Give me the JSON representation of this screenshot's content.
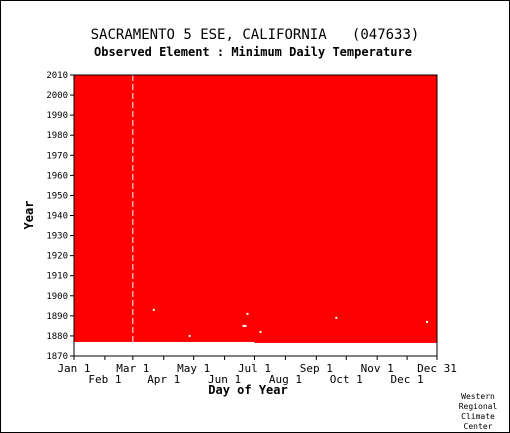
{
  "chart_data": {
    "type": "heatmap",
    "title": "SACRAMENTO 5 ESE, CALIFORNIA   (047633)",
    "subtitle": "Observed Element : Minimum Daily Temperature",
    "xlabel": "Day of Year",
    "ylabel": "Year",
    "fill_color": "#ff0000",
    "background_color": "#ffffff",
    "xlim": [
      1,
      365
    ],
    "ylim": [
      1870,
      2010
    ],
    "y_ticks": [
      1870,
      1880,
      1890,
      1900,
      1910,
      1920,
      1930,
      1940,
      1950,
      1960,
      1970,
      1980,
      1990,
      2000,
      2010
    ],
    "x_ticks_upper": [
      {
        "label": "Jan 1",
        "day": 1
      },
      {
        "label": "Mar 1",
        "day": 60
      },
      {
        "label": "May 1",
        "day": 121
      },
      {
        "label": "Jul 1",
        "day": 182
      },
      {
        "label": "Sep 1",
        "day": 244
      },
      {
        "label": "Nov 1",
        "day": 305
      },
      {
        "label": "Dec 31",
        "day": 365
      }
    ],
    "x_ticks_lower": [
      {
        "label": "Feb 1",
        "day": 32
      },
      {
        "label": "Apr 1",
        "day": 91
      },
      {
        "label": "Jun 1",
        "day": 152
      },
      {
        "label": "Aug 1",
        "day": 213
      },
      {
        "label": "Oct 1",
        "day": 274
      },
      {
        "label": "Dec 1",
        "day": 335
      }
    ],
    "record_start": [
      {
        "day_from": 1,
        "day_to": 182,
        "year": 1877
      },
      {
        "day_from": 182,
        "day_to": 365,
        "year": 1876.5
      }
    ],
    "record_end_year": 2010,
    "missing_day_lines": [
      {
        "day": 60,
        "year_from": 1877,
        "year_to": 2010
      }
    ],
    "missing_points": [
      {
        "day": 81,
        "year": 1893
      },
      {
        "day": 117,
        "year": 1880
      },
      {
        "day": 171,
        "year": 1885
      },
      {
        "day": 173,
        "year": 1885
      },
      {
        "day": 175,
        "year": 1891
      },
      {
        "day": 188,
        "year": 1882
      },
      {
        "day": 264,
        "year": 1889
      },
      {
        "day": 355,
        "year": 1887
      }
    ]
  },
  "credit": [
    "Western",
    "Regional",
    "Climate",
    "Center"
  ]
}
